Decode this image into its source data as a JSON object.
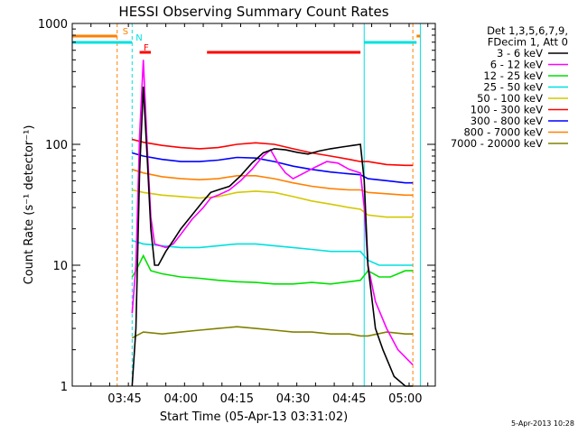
{
  "chart_data": {
    "type": "line",
    "title": "HESSI Observing Summary Count Rates",
    "xlabel": "Start Time (05-Apr-13 03:31:02)",
    "ylabel": "Count Rate (s⁻¹ detector⁻¹)",
    "y_scale": "log",
    "ylim": [
      1,
      1000
    ],
    "xlim": [
      "03:31",
      "05:08"
    ],
    "x_ticks": [
      "03:45",
      "04:00",
      "04:15",
      "04:30",
      "04:45",
      "05:00"
    ],
    "y_ticks": [
      "1",
      "10",
      "100",
      "1000"
    ],
    "grid": false,
    "timestamp": "5-Apr-2013 10:28",
    "legend": {
      "placement": "right",
      "header": [
        "Det 1,3,5,6,7,9,",
        "FDecim 1, Att 0"
      ],
      "entries": [
        {
          "label": "3 - 6 keV",
          "color": "#000000"
        },
        {
          "label": "6 - 12 keV",
          "color": "#ff00ff"
        },
        {
          "label": "12 - 25 keV",
          "color": "#00e000"
        },
        {
          "label": "25 - 50 keV",
          "color": "#00e0e0"
        },
        {
          "label": "50 - 100 keV",
          "color": "#d4c800"
        },
        {
          "label": "100 - 300 keV",
          "color": "#ff0000"
        },
        {
          "label": "300 - 800 keV",
          "color": "#0000ff"
        },
        {
          "label": "800 - 7000 keV",
          "color": "#ff8000"
        },
        {
          "label": "7000 - 20000 keV",
          "color": "#808000"
        }
      ]
    },
    "flags": {
      "saa": {
        "label": "S",
        "color": "#ff8000",
        "periods": [
          [
            "03:31",
            "03:43"
          ],
          [
            "05:03",
            "05:04"
          ]
        ],
        "edges": [
          "03:43",
          "05:02"
        ]
      },
      "night": {
        "label": "N",
        "color": "#00e0e0",
        "periods": [
          [
            "03:31",
            "03:47"
          ],
          [
            "04:49",
            "05:03"
          ]
        ],
        "edges": [
          "03:47",
          "04:49",
          "05:04"
        ]
      },
      "flare": {
        "label": "F",
        "color": "#ff0000",
        "periods": [
          [
            "03:49",
            "03:52"
          ],
          [
            "04:07",
            "04:48"
          ]
        ]
      }
    },
    "series": [
      {
        "name": "3 - 6 keV",
        "color": "#000000",
        "points": [
          [
            "03:47",
            1.0
          ],
          [
            "03:48",
            3
          ],
          [
            "03:49",
            60
          ],
          [
            "03:50",
            300
          ],
          [
            "03:51",
            80
          ],
          [
            "03:52",
            20
          ],
          [
            "03:53",
            10
          ],
          [
            "03:54",
            10
          ],
          [
            "03:56",
            13
          ],
          [
            "03:58",
            16
          ],
          [
            "04:00",
            20
          ],
          [
            "04:03",
            26
          ],
          [
            "04:06",
            34
          ],
          [
            "04:08",
            40
          ],
          [
            "04:10",
            42
          ],
          [
            "04:13",
            45
          ],
          [
            "04:16",
            55
          ],
          [
            "04:19",
            70
          ],
          [
            "04:22",
            85
          ],
          [
            "04:25",
            92
          ],
          [
            "04:28",
            90
          ],
          [
            "04:31",
            86
          ],
          [
            "04:34",
            83
          ],
          [
            "04:37",
            88
          ],
          [
            "04:40",
            92
          ],
          [
            "04:43",
            95
          ],
          [
            "04:46",
            98
          ],
          [
            "04:48",
            100
          ],
          [
            "04:49",
            50
          ],
          [
            "04:50",
            10
          ],
          [
            "04:52",
            3
          ],
          [
            "04:54",
            2
          ],
          [
            "04:57",
            1.2
          ],
          [
            "05:00",
            1.0
          ],
          [
            "05:02",
            1.0
          ]
        ]
      },
      {
        "name": "6 - 12 keV",
        "color": "#ff00ff",
        "points": [
          [
            "03:47",
            4
          ],
          [
            "03:48",
            10
          ],
          [
            "03:49",
            120
          ],
          [
            "03:50",
            500
          ],
          [
            "03:51",
            100
          ],
          [
            "03:52",
            25
          ],
          [
            "03:53",
            15
          ],
          [
            "03:56",
            14
          ],
          [
            "03:58",
            15
          ],
          [
            "04:00",
            18
          ],
          [
            "04:03",
            24
          ],
          [
            "04:06",
            30
          ],
          [
            "04:08",
            36
          ],
          [
            "04:10",
            38
          ],
          [
            "04:13",
            42
          ],
          [
            "04:16",
            50
          ],
          [
            "04:19",
            62
          ],
          [
            "04:22",
            80
          ],
          [
            "04:24",
            90
          ],
          [
            "04:26",
            70
          ],
          [
            "04:28",
            58
          ],
          [
            "04:30",
            52
          ],
          [
            "04:33",
            58
          ],
          [
            "04:36",
            65
          ],
          [
            "04:39",
            72
          ],
          [
            "04:42",
            70
          ],
          [
            "04:45",
            62
          ],
          [
            "04:48",
            58
          ],
          [
            "04:49",
            30
          ],
          [
            "04:50",
            10
          ],
          [
            "04:52",
            5
          ],
          [
            "04:55",
            3
          ],
          [
            "04:58",
            2
          ],
          [
            "05:02",
            1.5
          ]
        ]
      },
      {
        "name": "12 - 25 keV",
        "color": "#00e000",
        "points": [
          [
            "03:47",
            8
          ],
          [
            "03:48",
            9
          ],
          [
            "03:50",
            12
          ],
          [
            "03:52",
            9
          ],
          [
            "03:55",
            8.5
          ],
          [
            "04:00",
            8
          ],
          [
            "04:05",
            7.8
          ],
          [
            "04:10",
            7.5
          ],
          [
            "04:15",
            7.3
          ],
          [
            "04:20",
            7.2
          ],
          [
            "04:25",
            7.0
          ],
          [
            "04:30",
            7.0
          ],
          [
            "04:35",
            7.2
          ],
          [
            "04:40",
            7.0
          ],
          [
            "04:45",
            7.3
          ],
          [
            "04:48",
            7.5
          ],
          [
            "04:50",
            9
          ],
          [
            "04:53",
            8
          ],
          [
            "04:56",
            8
          ],
          [
            "05:00",
            9
          ],
          [
            "05:02",
            9
          ]
        ]
      },
      {
        "name": "25 - 50 keV",
        "color": "#00e0e0",
        "points": [
          [
            "03:47",
            16
          ],
          [
            "03:50",
            15
          ],
          [
            "03:55",
            14.5
          ],
          [
            "04:00",
            14
          ],
          [
            "04:05",
            14
          ],
          [
            "04:10",
            14.5
          ],
          [
            "04:15",
            15
          ],
          [
            "04:20",
            15
          ],
          [
            "04:25",
            14.5
          ],
          [
            "04:30",
            14
          ],
          [
            "04:35",
            13.5
          ],
          [
            "04:40",
            13
          ],
          [
            "04:45",
            13
          ],
          [
            "04:48",
            13
          ],
          [
            "04:50",
            11
          ],
          [
            "04:53",
            10
          ],
          [
            "04:56",
            10
          ],
          [
            "05:00",
            10
          ],
          [
            "05:02",
            10
          ]
        ]
      },
      {
        "name": "50 - 100 keV",
        "color": "#d4c800",
        "points": [
          [
            "03:47",
            42
          ],
          [
            "03:50",
            40
          ],
          [
            "03:55",
            38
          ],
          [
            "04:00",
            37
          ],
          [
            "04:05",
            36
          ],
          [
            "04:10",
            37
          ],
          [
            "04:15",
            40
          ],
          [
            "04:20",
            41
          ],
          [
            "04:25",
            40
          ],
          [
            "04:30",
            37
          ],
          [
            "04:35",
            34
          ],
          [
            "04:40",
            32
          ],
          [
            "04:45",
            30
          ],
          [
            "04:48",
            29
          ],
          [
            "04:50",
            26
          ],
          [
            "04:55",
            25
          ],
          [
            "05:00",
            25
          ],
          [
            "05:02",
            25
          ]
        ]
      },
      {
        "name": "100 - 300 keV",
        "color": "#ff0000",
        "points": [
          [
            "03:47",
            110
          ],
          [
            "03:50",
            104
          ],
          [
            "03:55",
            98
          ],
          [
            "04:00",
            94
          ],
          [
            "04:05",
            92
          ],
          [
            "04:10",
            94
          ],
          [
            "04:15",
            100
          ],
          [
            "04:20",
            103
          ],
          [
            "04:25",
            100
          ],
          [
            "04:30",
            92
          ],
          [
            "04:35",
            85
          ],
          [
            "04:40",
            80
          ],
          [
            "04:45",
            75
          ],
          [
            "04:48",
            72
          ],
          [
            "04:50",
            72
          ],
          [
            "04:55",
            68
          ],
          [
            "05:00",
            67
          ],
          [
            "05:02",
            67
          ]
        ]
      },
      {
        "name": "300 - 800 keV",
        "color": "#0000ff",
        "points": [
          [
            "03:47",
            85
          ],
          [
            "03:50",
            80
          ],
          [
            "03:55",
            75
          ],
          [
            "04:00",
            72
          ],
          [
            "04:05",
            72
          ],
          [
            "04:10",
            74
          ],
          [
            "04:15",
            78
          ],
          [
            "04:20",
            77
          ],
          [
            "04:25",
            72
          ],
          [
            "04:30",
            66
          ],
          [
            "04:35",
            62
          ],
          [
            "04:40",
            59
          ],
          [
            "04:45",
            57
          ],
          [
            "04:48",
            56
          ],
          [
            "04:50",
            52
          ],
          [
            "04:55",
            50
          ],
          [
            "05:00",
            48
          ],
          [
            "05:02",
            48
          ]
        ]
      },
      {
        "name": "800 - 7000 keV",
        "color": "#ff8000",
        "points": [
          [
            "03:47",
            62
          ],
          [
            "03:50",
            58
          ],
          [
            "03:55",
            54
          ],
          [
            "04:00",
            52
          ],
          [
            "04:05",
            51
          ],
          [
            "04:10",
            52
          ],
          [
            "04:15",
            55
          ],
          [
            "04:20",
            55
          ],
          [
            "04:25",
            52
          ],
          [
            "04:30",
            48
          ],
          [
            "04:35",
            45
          ],
          [
            "04:40",
            43
          ],
          [
            "04:45",
            42
          ],
          [
            "04:48",
            42
          ],
          [
            "04:50",
            40
          ],
          [
            "04:55",
            39
          ],
          [
            "05:00",
            38
          ],
          [
            "05:02",
            38
          ]
        ]
      },
      {
        "name": "7000 - 20000 keV",
        "color": "#808000",
        "points": [
          [
            "03:47",
            2.5
          ],
          [
            "03:50",
            2.8
          ],
          [
            "03:55",
            2.7
          ],
          [
            "04:00",
            2.8
          ],
          [
            "04:05",
            2.9
          ],
          [
            "04:10",
            3.0
          ],
          [
            "04:15",
            3.1
          ],
          [
            "04:20",
            3.0
          ],
          [
            "04:25",
            2.9
          ],
          [
            "04:30",
            2.8
          ],
          [
            "04:35",
            2.8
          ],
          [
            "04:40",
            2.7
          ],
          [
            "04:45",
            2.7
          ],
          [
            "04:48",
            2.6
          ],
          [
            "04:50",
            2.6
          ],
          [
            "04:55",
            2.8
          ],
          [
            "05:00",
            2.7
          ],
          [
            "05:02",
            2.7
          ]
        ]
      }
    ]
  }
}
